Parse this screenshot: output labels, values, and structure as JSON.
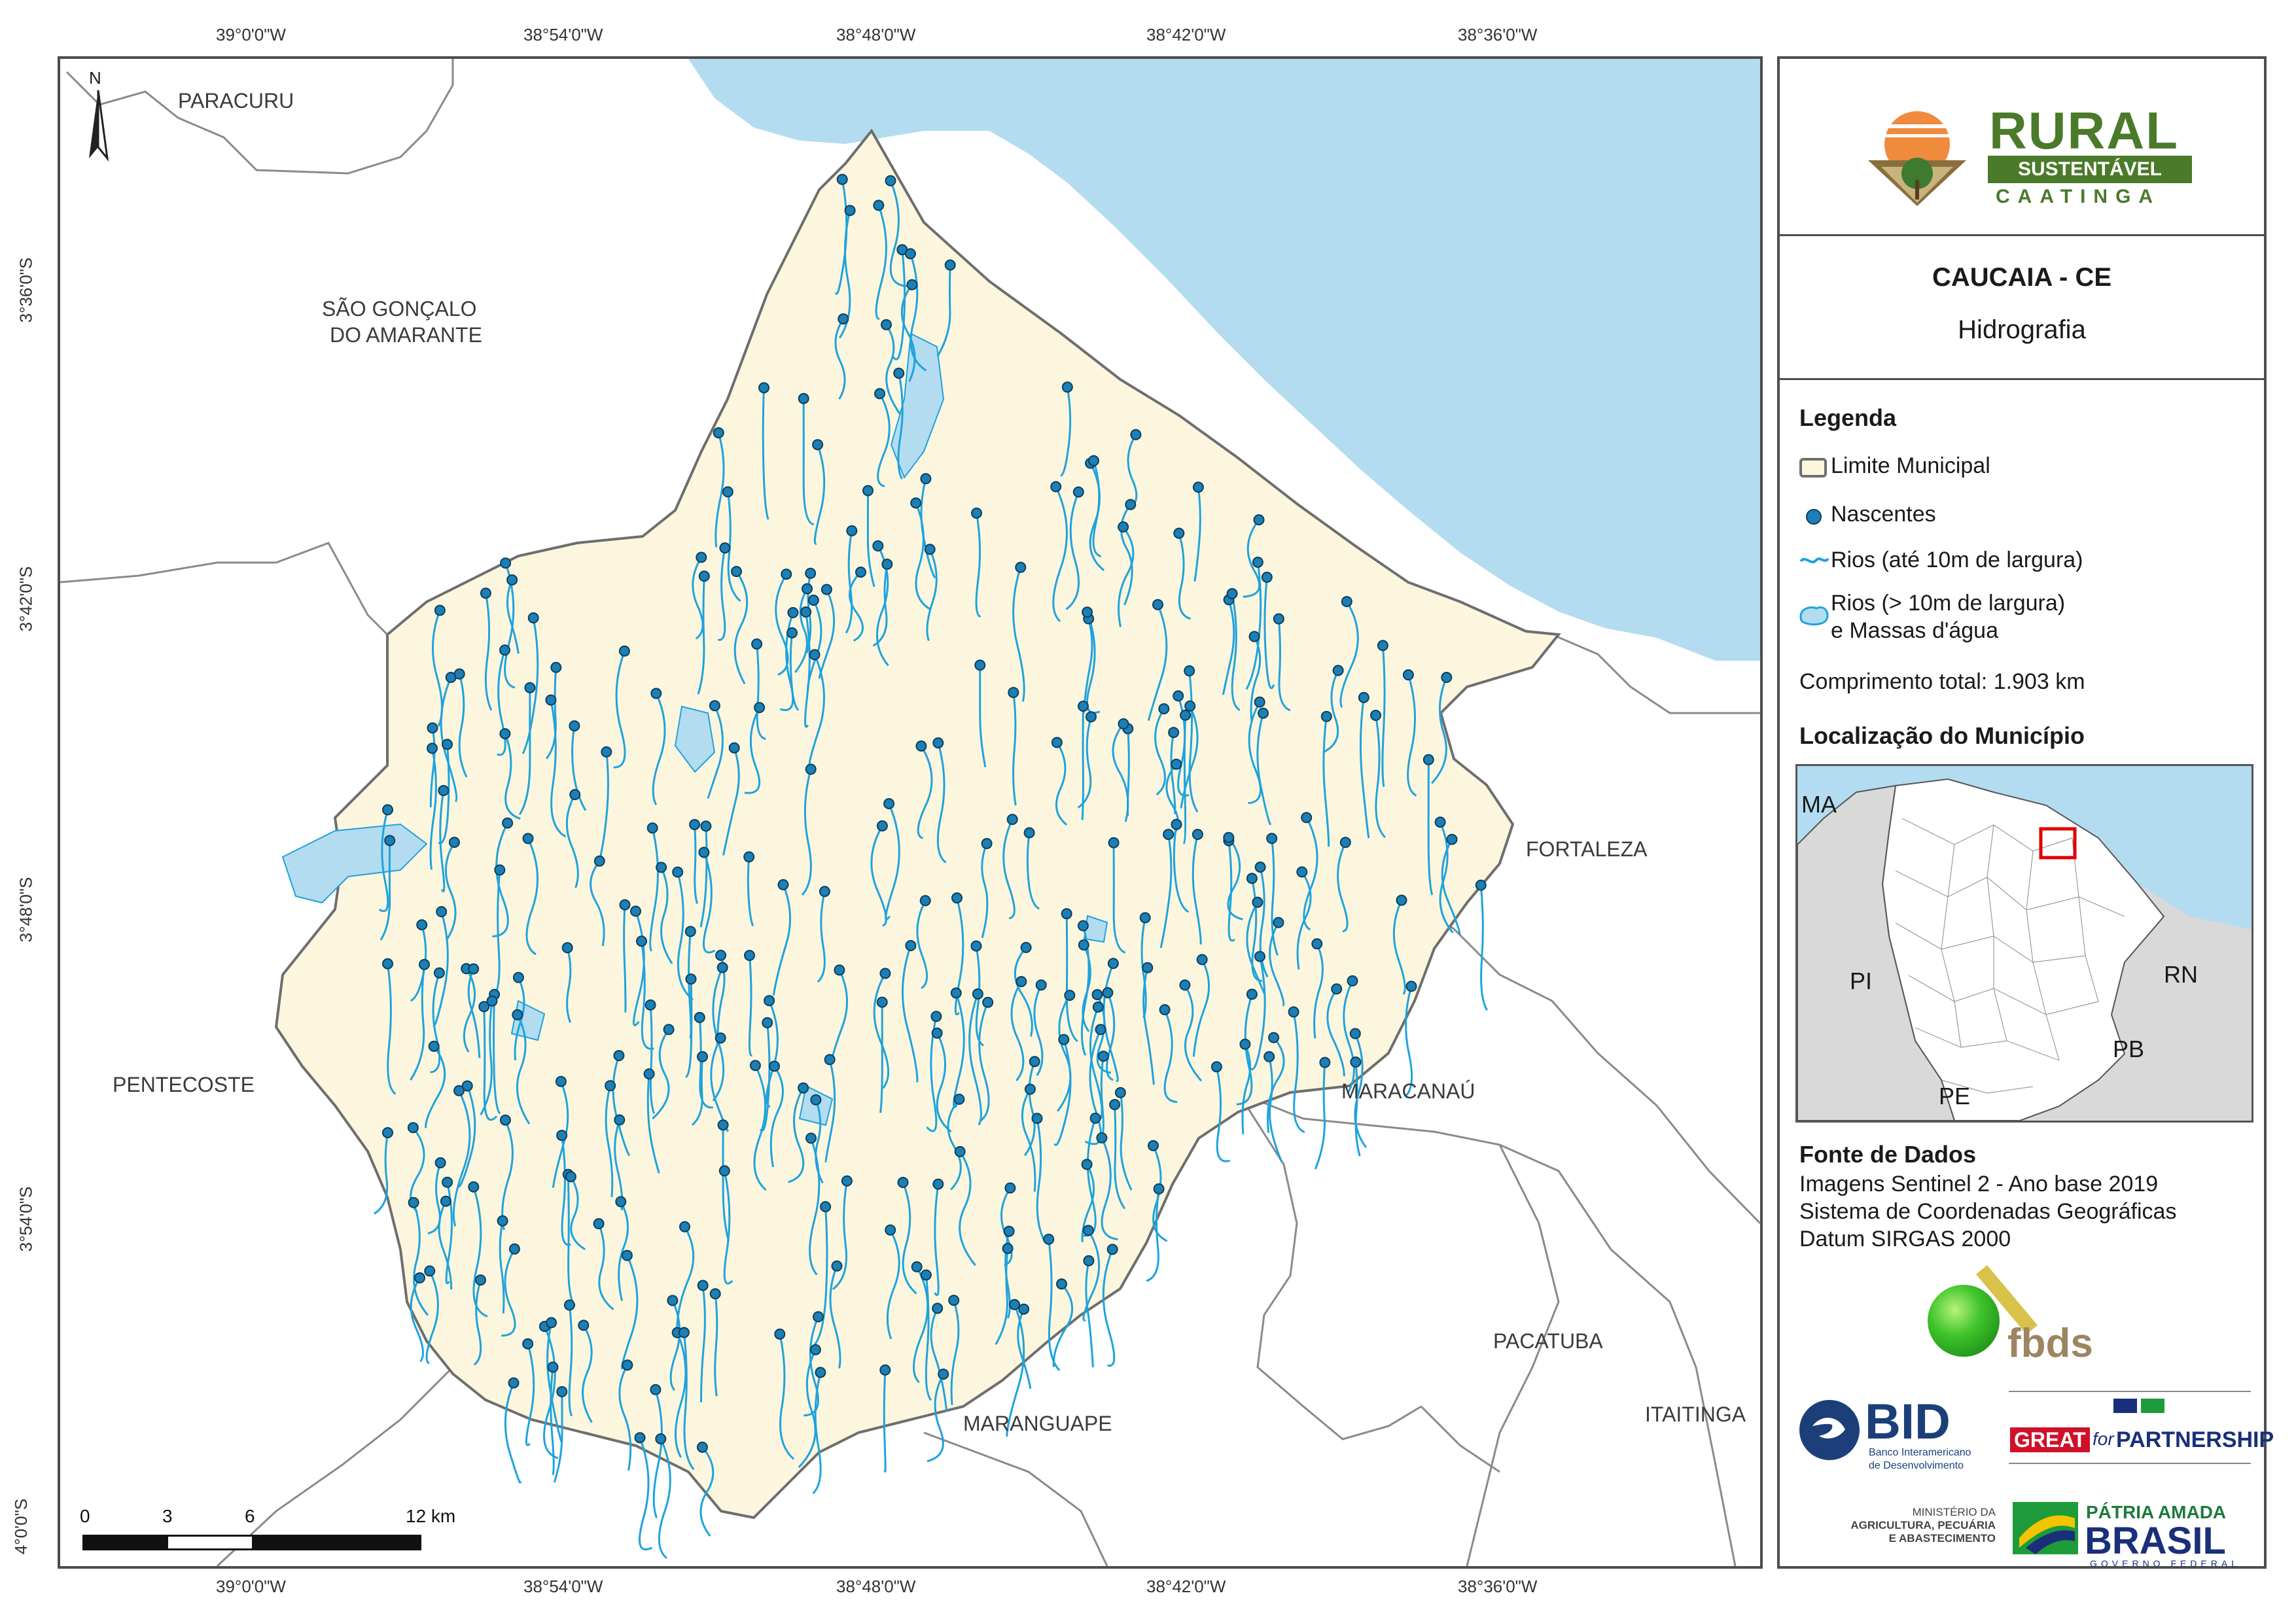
{
  "graticule": {
    "top": [
      "39°0'0\"W",
      "38°54'0\"W",
      "38°48'0\"W",
      "38°42'0\"W",
      "38°36'0\"W"
    ],
    "bottom": [
      "39°0'0\"W",
      "38°54'0\"W",
      "38°48'0\"W",
      "38°42'0\"W",
      "38°36'0\"W"
    ],
    "left": [
      "3°36'0\"S",
      "3°42'0\"S",
      "3°48'0\"S",
      "3°54'0\"S",
      "4°0'0\"S"
    ]
  },
  "map": {
    "neighbors": {
      "paracuru": "PARACURU",
      "sao_goncalo_1": "SÃO GONÇALO",
      "sao_goncalo_2": "DO AMARANTE",
      "pentecoste": "PENTECOSTE",
      "fortaleza": "FORTALEZA",
      "maracanau": "MARACANAÚ",
      "pacatuba": "PACATUBA",
      "maranguape": "MARANGUAPE",
      "itaitinga": "ITAITINGA"
    },
    "north_arrow": "N",
    "colors": {
      "sea": "#b3dcf1",
      "municipality": "#fdf6df",
      "river": "#1ea3dc",
      "spring": "#1c7fb5",
      "boundary": "#6e6e6e"
    },
    "scalebar": {
      "labels": [
        "0",
        "3",
        "6",
        "12 km"
      ]
    }
  },
  "panel": {
    "logo": {
      "word1": "RURAL",
      "word2": "SUSTENTÁVEL",
      "word3": "CAATINGA"
    },
    "title": "CAUCAIA - CE",
    "subtitle": "Hidrografia",
    "legend": {
      "heading": "Legenda",
      "items": [
        "Limite Municipal",
        "Nascentes",
        "Rios (até 10m de largura)",
        "Rios (> 10m de largura)",
        "e Massas d'água"
      ],
      "total": "Comprimento total:  1.903 km"
    },
    "location": {
      "heading": "Localização do Município",
      "states": [
        "MA",
        "PI",
        "RN",
        "PB",
        "PE"
      ]
    },
    "sources": {
      "heading": "Fonte de Dados",
      "lines": [
        "Imagens Sentinel 2 - Ano base 2019",
        "Sistema de Coordenadas Geográficas",
        "Datum SIRGAS 2000"
      ]
    },
    "partners": {
      "fbds": "fbds",
      "bid": "BID",
      "bid_sub1": "Banco Interamericano",
      "bid_sub2": "de Desenvolvimento",
      "great": "GREAT",
      "great_for": "for",
      "great_partner": "PARTNERSHIP",
      "min1": "MINISTÉRIO DA",
      "min2": "AGRICULTURA, PECUÁRIA",
      "min3": "E ABASTECIMENTO",
      "patria": "PÁTRIA AMADA",
      "brasil": "BRASIL",
      "gov": "GOVERNO FEDERAL"
    }
  }
}
